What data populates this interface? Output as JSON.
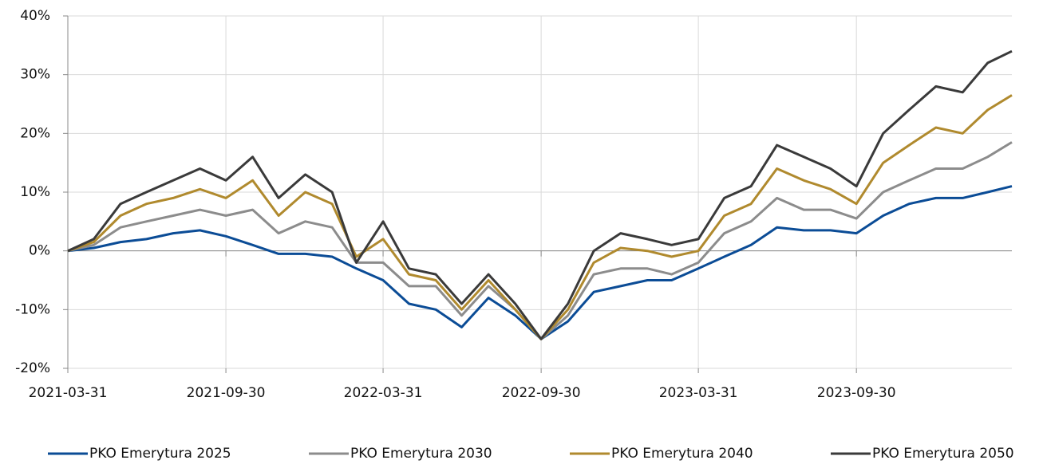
{
  "chart_data": {
    "type": "line",
    "x": [
      "2021-03-31",
      "2021-04-30",
      "2021-05-31",
      "2021-06-30",
      "2021-07-31",
      "2021-08-31",
      "2021-09-30",
      "2021-10-31",
      "2021-11-30",
      "2021-12-31",
      "2022-01-31",
      "2022-02-28",
      "2022-03-31",
      "2022-04-30",
      "2022-05-31",
      "2022-06-30",
      "2022-07-31",
      "2022-08-31",
      "2022-09-30",
      "2022-10-31",
      "2022-11-30",
      "2022-12-31",
      "2023-01-31",
      "2023-02-28",
      "2023-03-31",
      "2023-04-30",
      "2023-05-31",
      "2023-06-30",
      "2023-07-31",
      "2023-08-31",
      "2023-09-30",
      "2023-10-31",
      "2023-11-30",
      "2023-12-31",
      "2024-01-31",
      "2024-02-29",
      "2024-03-28"
    ],
    "series": [
      {
        "name": "PKO Emerytura 2025",
        "color": "#0b4c96",
        "values": [
          0,
          0.5,
          1.5,
          2,
          3,
          3.5,
          2.5,
          1,
          -0.5,
          -0.5,
          -1,
          -3,
          -5,
          -9,
          -10,
          -13,
          -8,
          -11,
          -15,
          -12,
          -7,
          -6,
          -5,
          -5,
          -3,
          -1,
          1,
          4,
          3.5,
          3.5,
          3,
          6,
          8,
          9,
          9,
          10,
          11
        ]
      },
      {
        "name": "PKO Emerytura 2030",
        "color": "#8c8c8c",
        "values": [
          0,
          1,
          4,
          5,
          6,
          7,
          6,
          7,
          3,
          5,
          4,
          -2,
          -2,
          -6,
          -6,
          -11,
          -6,
          -10,
          -15,
          -11,
          -4,
          -3,
          -3,
          -4,
          -2,
          3,
          5,
          9,
          7,
          7,
          5.5,
          10,
          12,
          14,
          14,
          16,
          18.5
        ]
      },
      {
        "name": "PKO Emerytura 2040",
        "color": "#b08a2e",
        "values": [
          0,
          1.5,
          6,
          8,
          9,
          10.5,
          9,
          12,
          6,
          10,
          8,
          -1,
          2,
          -4,
          -5,
          -10,
          -5,
          -10,
          -15,
          -10,
          -2,
          0.5,
          0,
          -1,
          0,
          6,
          8,
          14,
          12,
          10.5,
          8,
          15,
          18,
          21,
          20,
          24,
          26.5
        ]
      },
      {
        "name": "PKO Emerytura 2050",
        "color": "#3a3a3a",
        "values": [
          0,
          2,
          8,
          10,
          12,
          14,
          12,
          16,
          9,
          13,
          10,
          -2,
          5,
          -3,
          -4,
          -9,
          -4,
          -9,
          -15,
          -9,
          0,
          3,
          2,
          1,
          2,
          9,
          11,
          18,
          16,
          14,
          11,
          20,
          24,
          28,
          27,
          32,
          34
        ]
      }
    ],
    "xlim": [
      "2021-03-31",
      "2024-03-28"
    ],
    "xticks": [
      "2021-03-31",
      "2021-09-30",
      "2022-03-31",
      "2022-09-30",
      "2023-03-31",
      "2023-09-30"
    ],
    "ylim": [
      -20,
      40
    ],
    "yticks": [
      {
        "value": -20,
        "label": "-20%"
      },
      {
        "value": -10,
        "label": "-10%"
      },
      {
        "value": 0,
        "label": "0%"
      },
      {
        "value": 10,
        "label": "10%"
      },
      {
        "value": 20,
        "label": "20%"
      },
      {
        "value": 30,
        "label": "30%"
      },
      {
        "value": 40,
        "label": "40%"
      }
    ],
    "grid": true,
    "legend": "bottom"
  }
}
